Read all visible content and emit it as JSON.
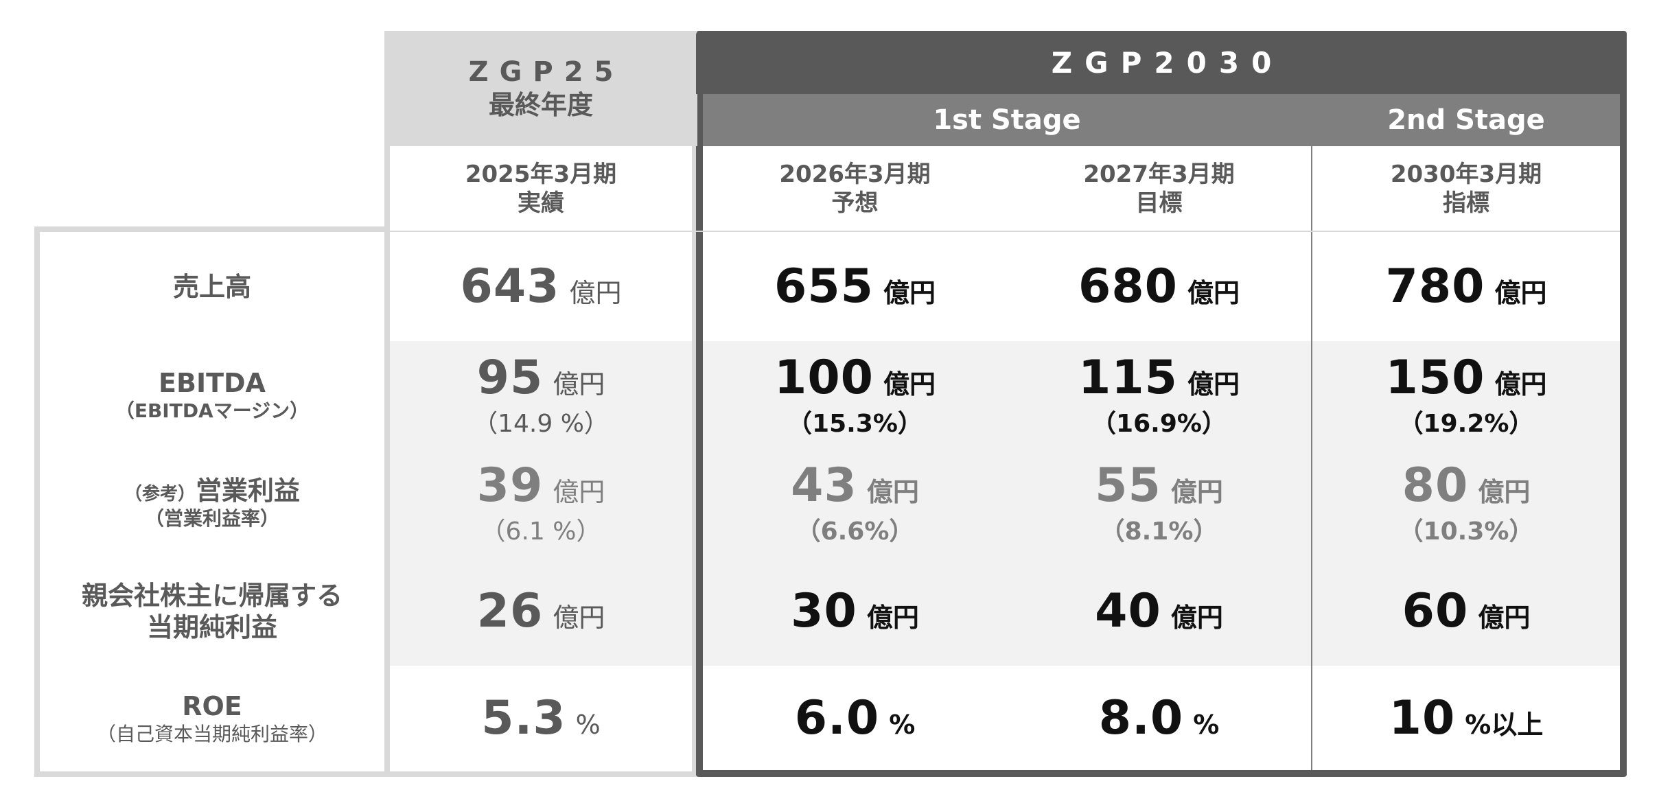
{
  "header": {
    "zgp25": {
      "line1": "ZGP25",
      "line2": "最終年度"
    },
    "zgp2030": "ZGP2030",
    "stage1": "1st Stage",
    "stage2": "2nd Stage"
  },
  "periods": [
    {
      "year": "2025年3月期",
      "kind": "実績"
    },
    {
      "year": "2026年3月期",
      "kind": "予想"
    },
    {
      "year": "2027年3月期",
      "kind": "目標"
    },
    {
      "year": "2030年3月期",
      "kind": "指標"
    }
  ],
  "rows": {
    "sales": {
      "label": "売上高",
      "values": [
        {
          "num": "643",
          "unit": "億円"
        },
        {
          "num": "655",
          "unit": "億円"
        },
        {
          "num": "680",
          "unit": "億円"
        },
        {
          "num": "780",
          "unit": "億円"
        }
      ]
    },
    "ebitda": {
      "label": "EBITDA",
      "sub": "（EBITDAマージン）",
      "values": [
        {
          "num": "95",
          "unit": "億円",
          "pct": "（14.9 %）"
        },
        {
          "num": "100",
          "unit": "億円",
          "pct": "（15.3%）"
        },
        {
          "num": "115",
          "unit": "億円",
          "pct": "（16.9%）"
        },
        {
          "num": "150",
          "unit": "億円",
          "pct": "（19.2%）"
        }
      ]
    },
    "op_income": {
      "prefix": "（参考）",
      "label": "営業利益",
      "sub": "（営業利益率）",
      "values": [
        {
          "num": "39",
          "unit": "億円",
          "pct": "（6.1 %）"
        },
        {
          "num": "43",
          "unit": "億円",
          "pct": "（6.6%）"
        },
        {
          "num": "55",
          "unit": "億円",
          "pct": "（8.1%）"
        },
        {
          "num": "80",
          "unit": "億円",
          "pct": "（10.3%）"
        }
      ]
    },
    "net_income": {
      "label_line1": "親会社株主に帰属する",
      "label_line2": "当期純利益",
      "values": [
        {
          "num": "26",
          "unit": "億円"
        },
        {
          "num": "30",
          "unit": "億円"
        },
        {
          "num": "40",
          "unit": "億円"
        },
        {
          "num": "60",
          "unit": "億円"
        }
      ]
    },
    "roe": {
      "label": "ROE",
      "sub": "（自己資本当期純利益率）",
      "values": [
        {
          "num": "5.3",
          "unit": "%"
        },
        {
          "num": "6.0",
          "unit": "%"
        },
        {
          "num": "8.0",
          "unit": "%"
        },
        {
          "num": "10",
          "unit": "%以上"
        }
      ]
    }
  },
  "colors": {
    "dark_header": "#595959",
    "stage_header": "#7f7f7f",
    "zgp25_header": "#d9d9d9",
    "row_shade": "#f2f2f2"
  }
}
